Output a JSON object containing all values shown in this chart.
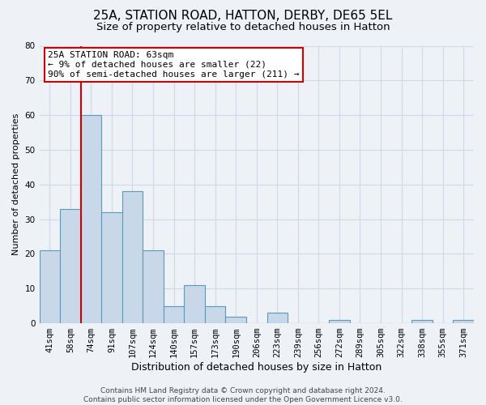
{
  "title": "25A, STATION ROAD, HATTON, DERBY, DE65 5EL",
  "subtitle": "Size of property relative to detached houses in Hatton",
  "xlabel": "Distribution of detached houses by size in Hatton",
  "ylabel": "Number of detached properties",
  "categories": [
    "41sqm",
    "58sqm",
    "74sqm",
    "91sqm",
    "107sqm",
    "124sqm",
    "140sqm",
    "157sqm",
    "173sqm",
    "190sqm",
    "206sqm",
    "223sqm",
    "239sqm",
    "256sqm",
    "272sqm",
    "289sqm",
    "305sqm",
    "322sqm",
    "338sqm",
    "355sqm",
    "371sqm"
  ],
  "values": [
    21,
    33,
    60,
    32,
    38,
    21,
    5,
    11,
    5,
    2,
    0,
    3,
    0,
    0,
    1,
    0,
    0,
    0,
    1,
    0,
    1
  ],
  "bar_color": "#c8d8e8",
  "bar_edgecolor": "#5a9abf",
  "vline_color": "#cc0000",
  "vline_x": 1.5,
  "annotation_text": "25A STATION ROAD: 63sqm\n← 9% of detached houses are smaller (22)\n90% of semi-detached houses are larger (211) →",
  "annotation_box_edgecolor": "#cc0000",
  "annotation_box_facecolor": "#ffffff",
  "ylim": [
    0,
    80
  ],
  "yticks": [
    0,
    10,
    20,
    30,
    40,
    50,
    60,
    70,
    80
  ],
  "grid_color": "#d0d8e8",
  "background_color": "#eef2f7",
  "footer_text": "Contains HM Land Registry data © Crown copyright and database right 2024.\nContains public sector information licensed under the Open Government Licence v3.0.",
  "title_fontsize": 11,
  "subtitle_fontsize": 9.5,
  "xlabel_fontsize": 9,
  "ylabel_fontsize": 8,
  "tick_fontsize": 7.5,
  "footer_fontsize": 6.5,
  "ann_fontsize": 8
}
